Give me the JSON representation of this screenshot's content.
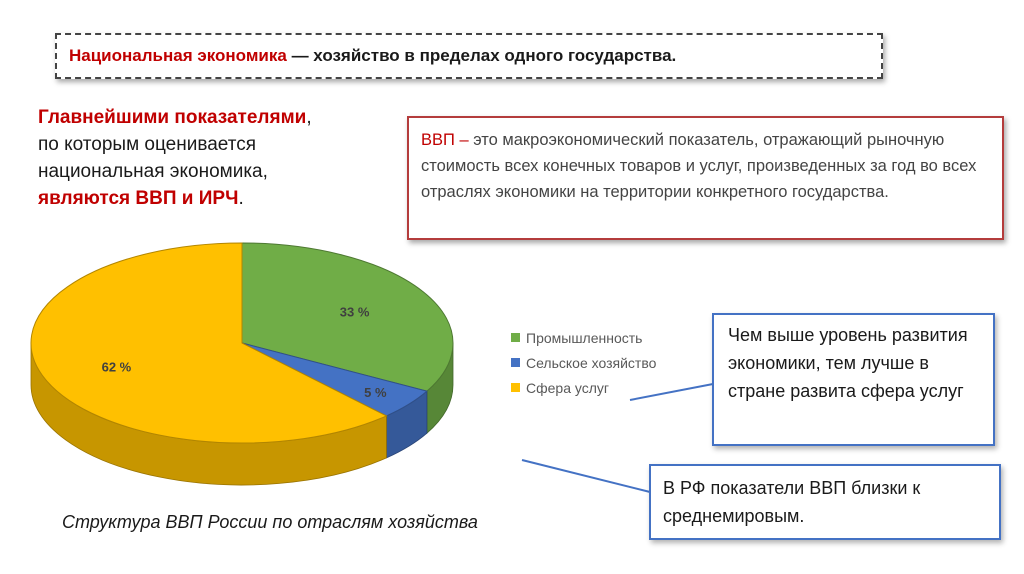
{
  "title": {
    "highlight": "Национальная экономика",
    "rest": " — хозяйство в пределах одного государства."
  },
  "indicators": {
    "line1_red": "Главнейшими показателями",
    "line1_tail": ",",
    "line2": "по которым оценивается",
    "line3": "национальная экономика,",
    "line4_red": "являются ВВП и ИРЧ",
    "line4_tail": "."
  },
  "gdp_definition": {
    "term": "ВВП – ",
    "text": "это макроэкономический показатель, отражающий рыночную стоимость всех конечных товаров и услуг, произведенных за год во всех отраслях экономики на территории конкретного государства."
  },
  "chart_data": {
    "type": "pie",
    "style": "3d",
    "title": "Структура ВВП России по отраслям хозяйства",
    "categories": [
      "Промышленность",
      "Сельское хозяйство",
      "Сфера услуг"
    ],
    "values": [
      33,
      5,
      62
    ],
    "labels": [
      "33 %",
      "5 %",
      "62 %"
    ],
    "colors": [
      "#70ad47",
      "#4472c4",
      "#ffc000"
    ],
    "legend_position": "right"
  },
  "callouts": {
    "services": "Чем выше уровень развития экономики, тем лучше в стране развита сфера услуг",
    "russia": "В РФ показатели ВВП близки к среднемировым."
  }
}
